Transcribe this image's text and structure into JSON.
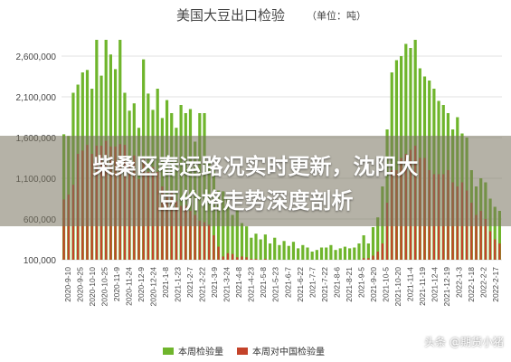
{
  "headline": {
    "line1": "柴桑区春运路况实时更新，沈阳大",
    "line2": "豆价格走势深度剖析"
  },
  "watermark": "头条 @期货小猪",
  "chart_data": {
    "type": "bar",
    "title": "美国大豆出口检验",
    "subtitle": "（单位：吨）",
    "xlabel": "",
    "ylabel": "",
    "ylim": [
      100000,
      2900000
    ],
    "yticks": [
      100000,
      600000,
      1100000,
      1600000,
      2100000,
      2600000
    ],
    "ytick_labels": [
      "100,000",
      "600,000",
      "1,100,000",
      "1,600,000",
      "2,100,000",
      "2,600,000"
    ],
    "grid": true,
    "legend_position": "bottom",
    "x_tick_labels": [
      "2020-9-10",
      "2020-9-25",
      "2020-10-10",
      "2020-10-25",
      "2020-11-9",
      "2020-11-24",
      "2020-12-9",
      "2020-12-24",
      "2021-1-8",
      "2021-1-23",
      "2021-2-7",
      "2021-2-22",
      "2021-3-9",
      "2021-3-24",
      "2021-4-8",
      "2021-4-23",
      "2021-5-8",
      "2021-5-23",
      "2021-6-7",
      "2021-6-22",
      "2021-7-7",
      "2021-7-22",
      "2021-8-6",
      "2021-8-21",
      "2021-9-5",
      "2021-9-20",
      "2021-10-5",
      "2021-10-20",
      "2021-11-4",
      "2021-11-19",
      "2021-12-4",
      "2021-12-19",
      "2022-1-3",
      "2022-1-18",
      "2022-2-2",
      "2022-2-17"
    ],
    "series": [
      {
        "name": "本周检验量",
        "color": "#6fb52c",
        "values": [
          1640000,
          1620000,
          2150000,
          2250000,
          2400000,
          2430000,
          2200000,
          2800000,
          2360000,
          2800000,
          2620000,
          2440000,
          2800000,
          2150000,
          1930000,
          2020000,
          1720000,
          2560000,
          2140000,
          1940000,
          2200000,
          1840000,
          2060000,
          1900000,
          1720000,
          2000000,
          1900000,
          1950000,
          1550000,
          1900000,
          1900000,
          1300000,
          1200000,
          950000,
          940000,
          850000,
          650000,
          730000,
          550000,
          510000,
          370000,
          420000,
          350000,
          410000,
          300000,
          370000,
          280000,
          330000,
          270000,
          320000,
          240000,
          280000,
          250000,
          200000,
          220000,
          250000,
          250000,
          280000,
          220000,
          240000,
          260000,
          240000,
          250000,
          300000,
          400000,
          300000,
          500000,
          620000,
          1000000,
          1700000,
          2400000,
          2550000,
          2600000,
          2750000,
          2700000,
          2800000,
          2450000,
          2350000,
          2300000,
          2200000,
          2050000,
          2000000,
          1900000,
          1700000,
          1850000,
          1650000,
          1600000,
          1200000,
          1000000,
          1100000,
          1050000,
          850000,
          750000,
          700000
        ],
        "color_name": "green"
      },
      {
        "name": "本周对中国检验量",
        "color": "#c4432a",
        "values": [
          840000,
          900000,
          1020000,
          1400000,
          1440000,
          1510000,
          1400000,
          1500000,
          1500000,
          1560000,
          1490000,
          1490000,
          1520000,
          1510000,
          1330000,
          1380000,
          1090000,
          1340000,
          1180000,
          1240000,
          1180000,
          1000000,
          900000,
          920000,
          820000,
          760000,
          770000,
          700000,
          650000,
          580000,
          560000,
          530000,
          400000,
          260000,
          140000,
          180000,
          170000,
          130000,
          140000,
          130000,
          110000,
          110000,
          100000,
          110000,
          100000,
          100000,
          100000,
          100000,
          100000,
          100000,
          100000,
          100000,
          100000,
          100000,
          100000,
          100000,
          100000,
          100000,
          100000,
          100000,
          100000,
          100000,
          100000,
          100000,
          120000,
          120000,
          150000,
          200000,
          300000,
          800000,
          1200000,
          1200000,
          1350000,
          1400000,
          1450000,
          1500000,
          1350000,
          1350000,
          1200000,
          1150000,
          1150000,
          1150000,
          1200000,
          1050000,
          1000000,
          1050000,
          950000,
          800000,
          650000,
          700000,
          600000,
          450000,
          350000,
          300000
        ]
      }
    ]
  }
}
